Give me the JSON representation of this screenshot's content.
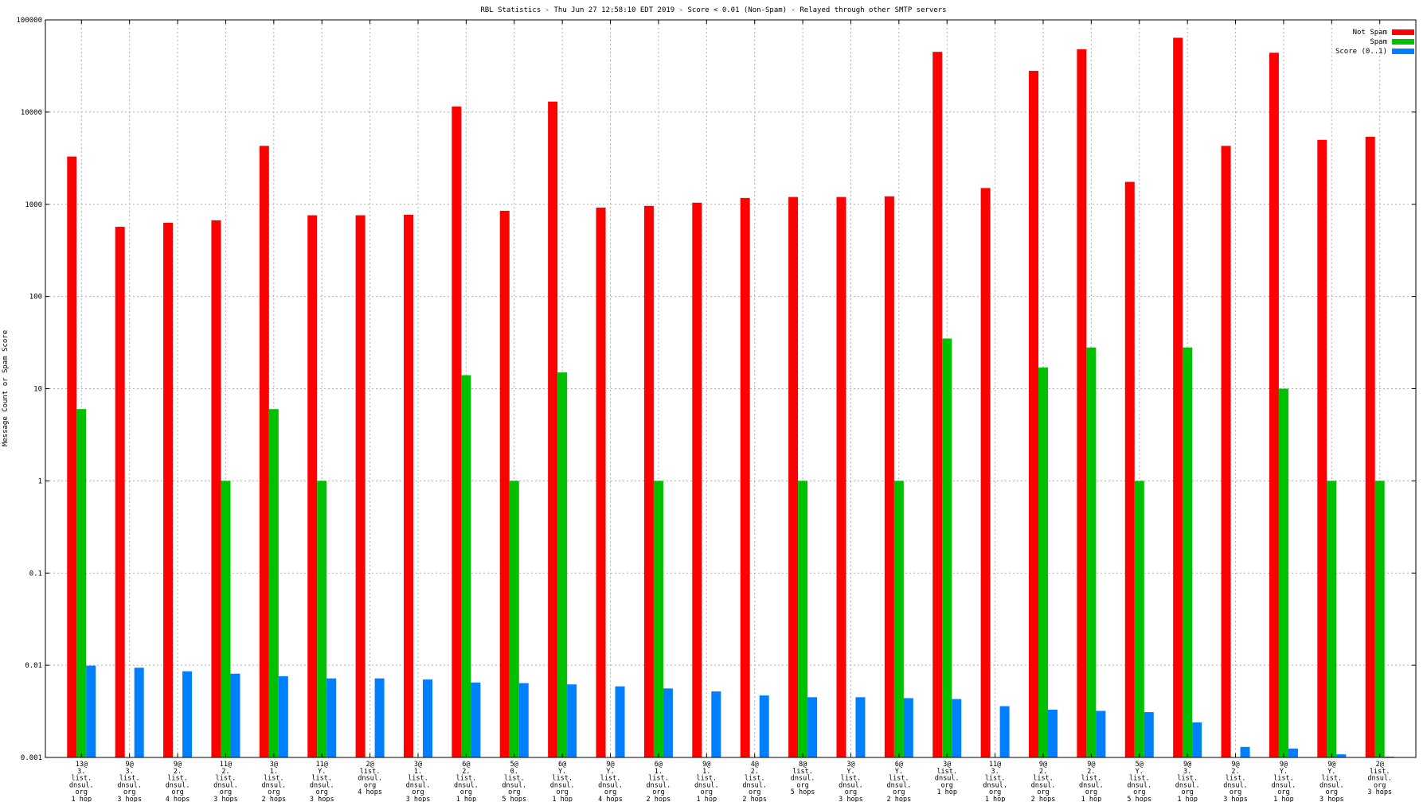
{
  "chart_data": {
    "type": "bar",
    "title": "RBL Statistics - Thu Jun 27 12:58:10 EDT 2019 - Score < 0.01 (Non-Spam) - Relayed through other SMTP servers",
    "xlabel": "",
    "ylabel": "Message Count or Spam Score",
    "yscale": "log",
    "ylim": [
      0.001,
      100000
    ],
    "yticks": [
      "100000",
      "10000",
      "1000",
      "100",
      "10",
      "1",
      "0.1",
      "0.01",
      "0.001"
    ],
    "grid": true,
    "legend_position": "top-right",
    "categories": [
      [
        "13@",
        "3.",
        "list.",
        "dnsul.",
        "org",
        "1 hop"
      ],
      [
        "9@",
        "3.",
        "list.",
        "dnsul.",
        "org",
        "3 hops"
      ],
      [
        "9@",
        "2.",
        "list.",
        "dnsul.",
        "org",
        "4 hops"
      ],
      [
        "11@",
        "2.",
        "list.",
        "dnsul.",
        "org",
        "3 hops"
      ],
      [
        "3@",
        "1.",
        "list.",
        "dnsul.",
        "org",
        "2 hops"
      ],
      [
        "11@",
        "Y.",
        "list.",
        "dnsul.",
        "org",
        "3 hops"
      ],
      [
        "2@",
        "list.",
        "dnsul.",
        "org",
        "4 hops"
      ],
      [
        "3@",
        "1.",
        "list.",
        "dnsul.",
        "org",
        "3 hops"
      ],
      [
        "6@",
        "2.",
        "list.",
        "dnsul.",
        "org",
        "1 hop"
      ],
      [
        "5@",
        "0.",
        "list.",
        "dnsul.",
        "org",
        "5 hops"
      ],
      [
        "6@",
        "Y.",
        "list.",
        "dnsul.",
        "org",
        "1 hop"
      ],
      [
        "9@",
        "Y.",
        "list.",
        "dnsul.",
        "org",
        "4 hops"
      ],
      [
        "6@",
        "1.",
        "list.",
        "dnsul.",
        "org",
        "2 hops"
      ],
      [
        "9@",
        "1.",
        "list.",
        "dnsul.",
        "org",
        "1 hop"
      ],
      [
        "4@",
        "2.",
        "list.",
        "dnsul.",
        "org",
        "2 hops"
      ],
      [
        "8@",
        "list.",
        "dnsul.",
        "org",
        "5 hops"
      ],
      [
        "3@",
        "Y.",
        "list.",
        "dnsul.",
        "org",
        "3 hops"
      ],
      [
        "6@",
        "Y.",
        "list.",
        "dnsul.",
        "org",
        "2 hops"
      ],
      [
        "3@",
        "list.",
        "dnsul.",
        "org",
        "1 hop"
      ],
      [
        "11@",
        "3.",
        "list.",
        "dnsul.",
        "org",
        "1 hop"
      ],
      [
        "9@",
        "2.",
        "list.",
        "dnsul.",
        "org",
        "2 hops"
      ],
      [
        "9@",
        "2.",
        "list.",
        "dnsul.",
        "org",
        "1 hop"
      ],
      [
        "5@",
        "Y.",
        "list.",
        "dnsul.",
        "org",
        "5 hops"
      ],
      [
        "9@",
        "3.",
        "list.",
        "dnsul.",
        "org",
        "1 hop"
      ],
      [
        "9@",
        "2.",
        "list.",
        "dnsul.",
        "org",
        "3 hops"
      ],
      [
        "9@",
        "Y.",
        "list.",
        "dnsul.",
        "org",
        "1 hop"
      ],
      [
        "9@",
        "Y.",
        "list.",
        "dnsul.",
        "org",
        "3 hops"
      ],
      [
        "2@",
        "list.",
        "dnsul.",
        "org",
        "3 hops"
      ]
    ],
    "series": [
      {
        "name": "Not Spam",
        "color": "#ff0000",
        "values": [
          3300,
          570,
          630,
          670,
          4300,
          760,
          760,
          770,
          11500,
          850,
          13000,
          920,
          960,
          1040,
          1170,
          1200,
          1200,
          1220,
          45000,
          1500,
          28000,
          48000,
          1750,
          64000,
          4300,
          44000,
          5000,
          5400
        ]
      },
      {
        "name": "Spam",
        "color": "#00c000",
        "values": [
          6,
          null,
          null,
          1,
          6,
          1,
          null,
          null,
          14,
          1,
          15,
          null,
          1,
          null,
          null,
          1,
          null,
          1,
          35,
          null,
          17,
          28,
          1,
          28,
          null,
          10,
          1,
          1
        ]
      },
      {
        "name": "Score (0..1)",
        "color": "#0080ff",
        "values": [
          0.0099,
          0.0094,
          0.0086,
          0.0081,
          0.0076,
          0.0072,
          0.0072,
          0.007,
          0.0065,
          0.0064,
          0.0062,
          0.0059,
          0.0056,
          0.0052,
          0.0047,
          0.0045,
          0.0045,
          0.0044,
          0.0043,
          0.0036,
          0.0033,
          0.0032,
          0.0031,
          0.0024,
          0.0013,
          0.00125,
          0.00108,
          0.00102
        ]
      }
    ]
  }
}
